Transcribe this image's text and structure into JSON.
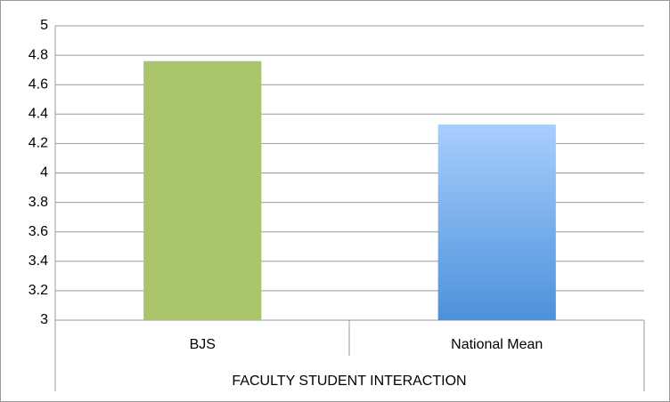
{
  "chart_data": {
    "type": "bar",
    "categories": [
      "BJS",
      "National Mean"
    ],
    "values": [
      4.76,
      4.33
    ],
    "colors": [
      [
        "#a9c46b",
        "#a9c46b"
      ],
      [
        "#a8cefc",
        "#4d91db"
      ]
    ],
    "x_group_label": "FACULTY STUDENT INTERACTION",
    "ylim": [
      3,
      5
    ],
    "yticks": [
      3,
      3.2,
      3.4,
      3.6,
      3.8,
      4,
      4.2,
      4.4,
      4.6,
      4.8,
      5
    ],
    "grid": true
  }
}
